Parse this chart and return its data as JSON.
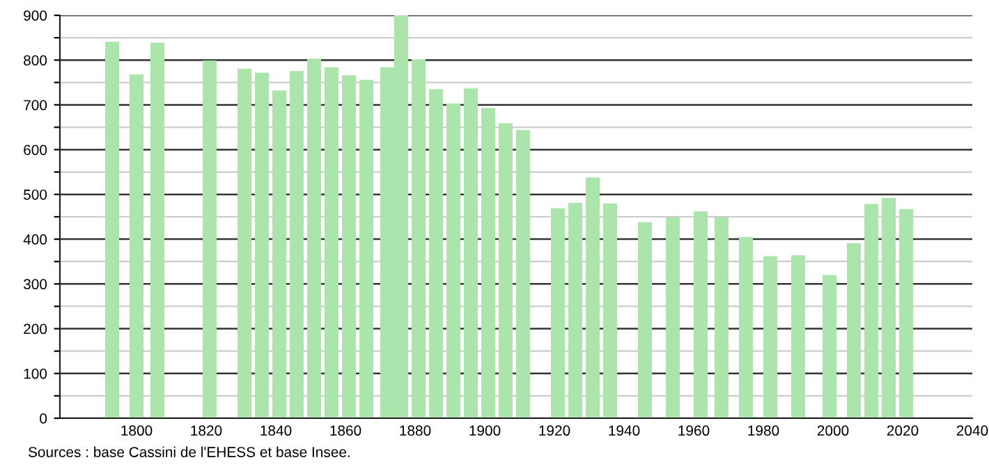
{
  "chart_data": {
    "type": "bar",
    "x": [
      1793,
      1800,
      1806,
      1821,
      1831,
      1836,
      1841,
      1846,
      1851,
      1856,
      1861,
      1866,
      1872,
      1876,
      1881,
      1886,
      1891,
      1896,
      1901,
      1906,
      1911,
      1921,
      1926,
      1931,
      1936,
      1946,
      1954,
      1962,
      1968,
      1975,
      1982,
      1990,
      1999,
      2006,
      2011,
      2016,
      2021
    ],
    "values": [
      841,
      768,
      839,
      799,
      781,
      772,
      732,
      776,
      803,
      784,
      766,
      756,
      784,
      900,
      802,
      735,
      703,
      737,
      693,
      659,
      644,
      469,
      481,
      538,
      480,
      438,
      449,
      462,
      449,
      405,
      362,
      364,
      320,
      391,
      479,
      492,
      467
    ],
    "color": "#ace5ac",
    "xlim": [
      1778,
      2040
    ],
    "xticks": [
      1800,
      1820,
      1840,
      1860,
      1880,
      1900,
      1920,
      1940,
      1960,
      1980,
      2000,
      2020,
      2040
    ],
    "ylim": [
      0,
      900
    ],
    "yticks": [
      0,
      {
        "value": 50,
        "label": null
      },
      100,
      {
        "value": 150,
        "label": null
      },
      200,
      {
        "value": 250,
        "label": null
      },
      300,
      {
        "value": 350,
        "label": null
      },
      400,
      {
        "value": 450,
        "label": null
      },
      500,
      {
        "value": 550,
        "label": null
      },
      600,
      {
        "value": 650,
        "label": null
      },
      700,
      {
        "value": 750,
        "label": null
      },
      800,
      {
        "value": 850,
        "label": null
      },
      900
    ],
    "grid": "y",
    "annotations": [
      "Sources : base Cassini de l'EHESS et base Insee."
    ]
  }
}
